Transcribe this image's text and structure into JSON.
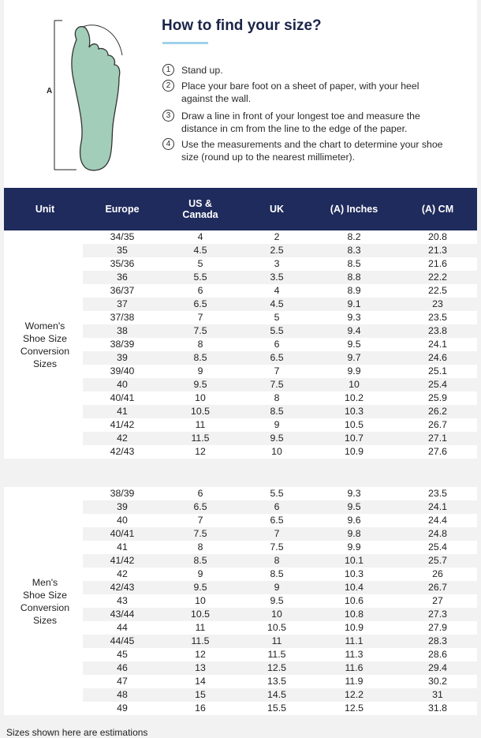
{
  "header": {
    "title": "How to find your size?",
    "measure_label": "A",
    "steps": [
      {
        "number": "1",
        "text": "Stand up."
      },
      {
        "number": "2",
        "text": "Place your bare foot on a sheet of paper, with your heel against the wall."
      },
      {
        "number": "3",
        "text": "Draw a line in front of your longest toe and measure the distance in cm from the line to the edge of the paper."
      },
      {
        "number": "4",
        "text": "Use the measurements and the chart to determine your shoe size (round up to the nearest millimeter)."
      }
    ]
  },
  "table": {
    "columns": [
      "Unit",
      "Europe",
      "US & Canada",
      "UK",
      "(A) Inches",
      "(A) CM"
    ],
    "sections": [
      {
        "unit": [
          "Women's",
          "Shoe Size",
          "Conversion",
          "Sizes"
        ],
        "rows": [
          [
            "34/35",
            "4",
            "2",
            "8.2",
            "20.8"
          ],
          [
            "35",
            "4.5",
            "2.5",
            "8.3",
            "21.3"
          ],
          [
            "35/36",
            "5",
            "3",
            "8.5",
            "21.6"
          ],
          [
            "36",
            "5.5",
            "3.5",
            "8.8",
            "22.2"
          ],
          [
            "36/37",
            "6",
            "4",
            "8.9",
            "22.5"
          ],
          [
            "37",
            "6.5",
            "4.5",
            "9.1",
            "23"
          ],
          [
            "37/38",
            "7",
            "5",
            "9.3",
            "23.5"
          ],
          [
            "38",
            "7.5",
            "5.5",
            "9.4",
            "23.8"
          ],
          [
            "38/39",
            "8",
            "6",
            "9.5",
            "24.1"
          ],
          [
            "39",
            "8.5",
            "6.5",
            "9.7",
            "24.6"
          ],
          [
            "39/40",
            "9",
            "7",
            "9.9",
            "25.1"
          ],
          [
            "40",
            "9.5",
            "7.5",
            "10",
            "25.4"
          ],
          [
            "40/41",
            "10",
            "8",
            "10.2",
            "25.9"
          ],
          [
            "41",
            "10.5",
            "8.5",
            "10.3",
            "26.2"
          ],
          [
            "41/42",
            "11",
            "9",
            "10.5",
            "26.7"
          ],
          [
            "42",
            "11.5",
            "9.5",
            "10.7",
            "27.1"
          ],
          [
            "42/43",
            "12",
            "10",
            "10.9",
            "27.6"
          ]
        ]
      },
      {
        "unit": [
          "Men's",
          "Shoe Size",
          "Conversion",
          "Sizes"
        ],
        "rows": [
          [
            "38/39",
            "6",
            "5.5",
            "9.3",
            "23.5"
          ],
          [
            "39",
            "6.5",
            "6",
            "9.5",
            "24.1"
          ],
          [
            "40",
            "7",
            "6.5",
            "9.6",
            "24.4"
          ],
          [
            "40/41",
            "7.5",
            "7",
            "9.8",
            "24.8"
          ],
          [
            "41",
            "8",
            "7.5",
            "9.9",
            "25.4"
          ],
          [
            "41/42",
            "8.5",
            "8",
            "10.1",
            "25.7"
          ],
          [
            "42",
            "9",
            "8.5",
            "10.3",
            "26"
          ],
          [
            "42/43",
            "9.5",
            "9",
            "10.4",
            "26.7"
          ],
          [
            "43",
            "10",
            "9.5",
            "10.6",
            "27"
          ],
          [
            "43/44",
            "10.5",
            "10",
            "10.8",
            "27.3"
          ],
          [
            "44",
            "11",
            "10.5",
            "10.9",
            "27.9"
          ],
          [
            "44/45",
            "11.5",
            "11",
            "11.1",
            "28.3"
          ],
          [
            "45",
            "12",
            "11.5",
            "11.3",
            "28.6"
          ],
          [
            "46",
            "13",
            "12.5",
            "11.6",
            "29.4"
          ],
          [
            "47",
            "14",
            "13.5",
            "11.9",
            "30.2"
          ],
          [
            "48",
            "15",
            "14.5",
            "12.2",
            "31"
          ],
          [
            "49",
            "16",
            "15.5",
            "12.5",
            "31.8"
          ]
        ]
      }
    ]
  },
  "footer": {
    "note": "Sizes shown here are estimations"
  }
}
